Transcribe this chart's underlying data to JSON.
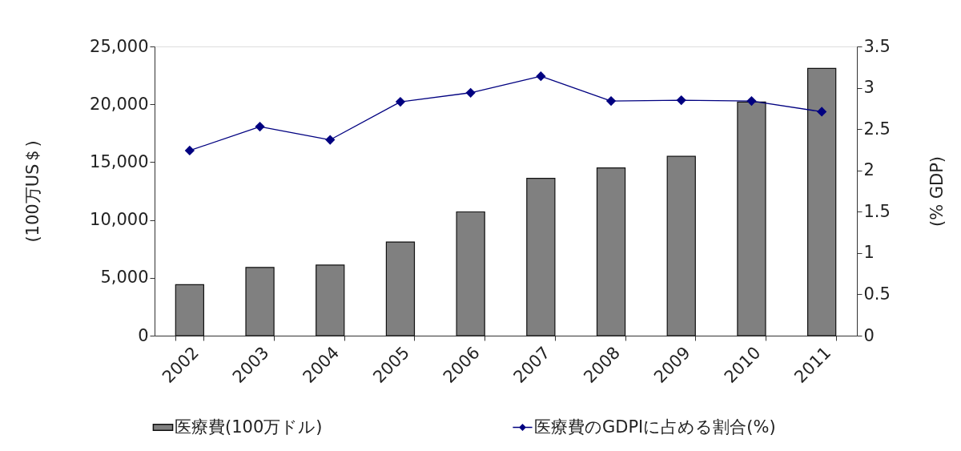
{
  "chart_data": {
    "type": "bar",
    "categories": [
      "2002",
      "2003",
      "2004",
      "2005",
      "2006",
      "2007",
      "2008",
      "2009",
      "2010",
      "2011"
    ],
    "ylabel": "(100万US＄)",
    "y2label": "(% GDP)",
    "ylim": [
      0,
      25000
    ],
    "yticks": [
      0,
      {
        "value": 5000,
        "label": "5,000"
      },
      {
        "value": 10000,
        "label": "10,000"
      },
      {
        "value": 15000,
        "label": "15,000"
      },
      {
        "value": 20000,
        "label": "20,000"
      },
      {
        "value": 25000,
        "label": "25,000"
      }
    ],
    "y2lim": [
      0,
      3.5
    ],
    "y2ticks": [
      0,
      0.5,
      1,
      1.5,
      2,
      2.5,
      3,
      3.5
    ],
    "legend": "bottom",
    "series": [
      {
        "name": "医療費(100万ドル)",
        "color": "#808080",
        "values": [
          4400,
          5900,
          6100,
          8100,
          10700,
          13600,
          14500,
          15500,
          20200,
          23100
        ]
      },
      {
        "name": "医療費のGDPIに占める割合(%)",
        "type": "line",
        "axis": "y2",
        "color": "#000080",
        "marker": "diamond",
        "values": [
          2.24,
          2.53,
          2.37,
          2.83,
          2.94,
          3.14,
          2.84,
          2.85,
          2.84,
          2.71
        ]
      }
    ]
  }
}
